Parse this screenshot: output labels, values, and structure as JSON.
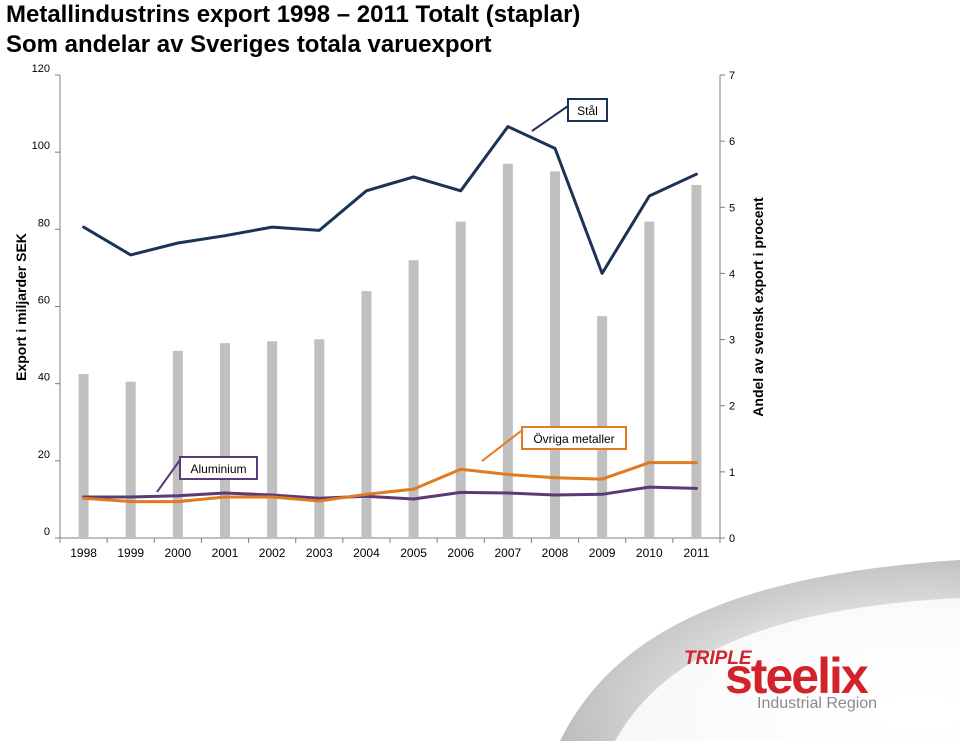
{
  "title": {
    "line1": "Metallindustrins export 1998 – 2011 Totalt (staplar)",
    "line2": "Som andelar av Sveriges totala varuexport"
  },
  "chart_data": {
    "type": "bar",
    "categories": [
      "1998",
      "1999",
      "2000",
      "2001",
      "2002",
      "2003",
      "2004",
      "2005",
      "2006",
      "2007",
      "2008",
      "2009",
      "2010",
      "2011"
    ],
    "y_left": {
      "label": "Export i miljarder SEK",
      "range": [
        0,
        120
      ],
      "ticks": [
        "0",
        "20",
        "40",
        "60",
        "80",
        "100",
        "120"
      ]
    },
    "y_right": {
      "label": "Andel av svensk export i procent",
      "range": [
        0,
        7
      ],
      "ticks": [
        "0",
        "1",
        "2",
        "3",
        "4",
        "5",
        "6",
        "7"
      ]
    },
    "bars": {
      "values": [
        42.5,
        40.5,
        48.5,
        50.5,
        51,
        51.5,
        64,
        72,
        82,
        97,
        95,
        57.5,
        82,
        91.5
      ],
      "color": "#c0c0c0"
    },
    "lines": [
      {
        "name": "Stål",
        "axis": "right",
        "color": "#1b3354",
        "values": [
          4.7,
          4.28,
          4.46,
          4.57,
          4.7,
          4.65,
          5.25,
          5.46,
          5.25,
          6.22,
          5.89,
          4.0,
          5.17,
          5.5
        ]
      },
      {
        "name": "Övriga metaller",
        "axis": "right",
        "color": "#e07b1f",
        "values": [
          0.6,
          0.55,
          0.55,
          0.62,
          0.62,
          0.56,
          0.66,
          0.74,
          1.04,
          0.96,
          0.91,
          0.89,
          1.14,
          1.14
        ]
      },
      {
        "name": "Aluminium",
        "axis": "right",
        "color": "#5b3a78",
        "values": [
          0.62,
          0.62,
          0.64,
          0.68,
          0.65,
          0.6,
          0.63,
          0.59,
          0.69,
          0.68,
          0.65,
          0.66,
          0.77,
          0.75
        ]
      }
    ],
    "grid": false
  },
  "logo": {
    "word1": "TRIPLE",
    "word2": "steelix",
    "tagline": "Industrial Region",
    "colors": {
      "red": "#d2232a",
      "gray": "#8a8a8a"
    }
  }
}
